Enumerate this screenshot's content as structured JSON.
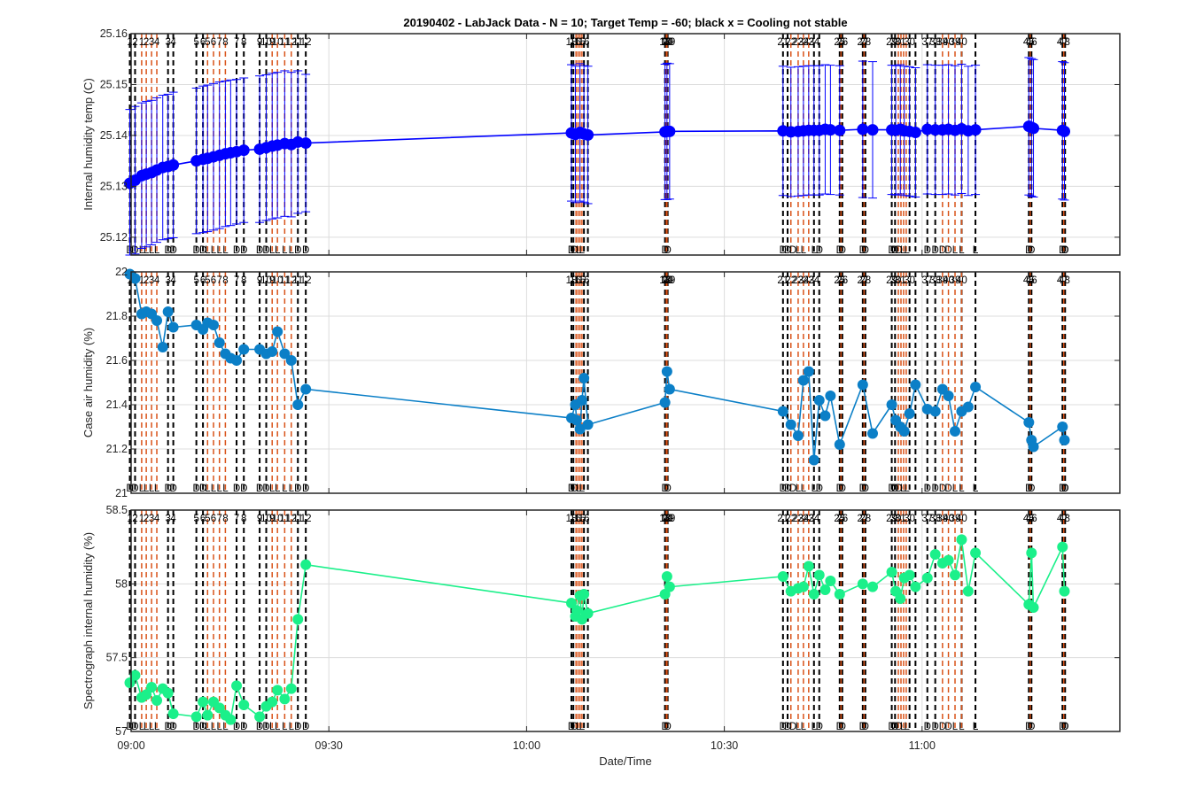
{
  "title": "20190402 - LabJack Data - N = 10; Target Temp = -60; black x = Cooling not stable",
  "xlabel": "Date/Time",
  "colors": {
    "series_top": "#0000ff",
    "series_mid": "#0b7fc7",
    "series_bot": "#1bf08a",
    "vline_black": "#000000",
    "vline_orange": "#d95319",
    "grid": "#dcdcdc",
    "axes": "#262626"
  },
  "chart_data": [
    {
      "type": "line",
      "ylabel": "Internal humidity temp (C)",
      "ylim": [
        25.1165,
        25.16
      ],
      "yticks": [
        "25.12",
        "25.13",
        "25.14",
        "25.15",
        "25.16"
      ],
      "xlim": [
        "09:00",
        "11:30"
      ],
      "xticks": [
        "09:00",
        "09:30",
        "10:00",
        "10:30",
        "11:00"
      ],
      "grid": true,
      "error_bars": true,
      "series": [
        {
          "x": [
            "08:59.8",
            "09:00.6",
            "09:01.6",
            "09:02.3",
            "09:03.1",
            "09:03.9",
            "09:04.8",
            "09:05.6",
            "09:06.4",
            "09:09.9",
            "09:10.9",
            "09:11.6",
            "09:12.5",
            "09:13.4",
            "09:14.3",
            "09:15.1",
            "09:16.0",
            "09:17.1",
            "09:19.5",
            "09:20.5",
            "09:21.4",
            "09:22.2",
            "09:23.3",
            "09:24.3",
            "09:25.3",
            "09:26.5",
            "10:06.8",
            "10:07.4",
            "10:08.1",
            "10:08.7",
            "10:09.3",
            "10:21.0",
            "10:21.3",
            "10:21.7",
            "10:38.9",
            "10:40.1",
            "10:41.2",
            "10:42.0",
            "10:42.8",
            "10:43.6",
            "10:44.4",
            "10:45.3",
            "10:46.1",
            "10:47.5",
            "10:51.0",
            "10:52.5",
            "10:55.4",
            "10:56.0",
            "10:56.7",
            "10:57.3",
            "10:58.1",
            "10:59.0",
            "11:00.8",
            "11:02.0",
            "11:03.1",
            "11:04.0",
            "11:05.0",
            "11:06.0",
            "11:07.0",
            "11:08.1",
            "11:16.2",
            "11:16.6",
            "11:16.9",
            "11:21.3",
            "11:21.6"
          ],
          "y": [
            25.1306,
            25.1312,
            25.1321,
            25.1324,
            25.1327,
            25.1332,
            25.1337,
            25.1339,
            25.1342,
            25.135,
            25.1353,
            25.1355,
            25.1358,
            25.1361,
            25.1364,
            25.1366,
            25.1368,
            25.1371,
            25.1373,
            25.1376,
            25.1379,
            25.1381,
            25.1384,
            25.1382,
            25.1387,
            25.1385,
            25.1405,
            25.1402,
            25.1406,
            25.1403,
            25.1401,
            25.1407,
            25.1408,
            25.1408,
            25.1409,
            25.1407,
            25.1408,
            25.1409,
            25.141,
            25.141,
            25.141,
            25.1412,
            25.1411,
            25.141,
            25.1412,
            25.1411,
            25.1411,
            25.141,
            25.1412,
            25.1409,
            25.1408,
            25.1406,
            25.1412,
            25.1411,
            25.1411,
            25.1412,
            25.141,
            25.1413,
            25.1409,
            25.1411,
            25.1418,
            25.1416,
            25.1414,
            25.141,
            25.1408
          ],
          "err": [
            0.0145,
            0.0145,
            0.0143,
            0.0143,
            0.0142,
            0.0142,
            0.0142,
            0.0142,
            0.0143,
            0.0143,
            0.0144,
            0.0144,
            0.0144,
            0.0144,
            0.0143,
            0.0143,
            0.0142,
            0.0142,
            0.0144,
            0.0143,
            0.0143,
            0.0143,
            0.0143,
            0.0142,
            0.014,
            0.0135,
            0.0134,
            0.0134,
            0.0135,
            0.0134,
            0.0135,
            0.0133,
            0.0134,
            0.0133,
            0.0127,
            0.0127,
            0.0127,
            0.0127,
            0.0127,
            0.0127,
            0.0127,
            0.0127,
            0.0127,
            0.0127,
            0.0134,
            0.0134,
            0.0127,
            0.0127,
            0.0127,
            0.0127,
            0.0127,
            0.0127,
            0.0127,
            0.0127,
            0.0127,
            0.0127,
            0.0127,
            0.0127,
            0.0127,
            0.0127,
            0.0135,
            0.0135,
            0.0135,
            0.0135,
            0.0135
          ]
        }
      ]
    },
    {
      "type": "line",
      "ylabel": "Case air humidity (%)",
      "ylim": [
        21,
        22
      ],
      "yticks": [
        "21",
        "21.2",
        "21.4",
        "21.6",
        "21.8",
        "22"
      ],
      "xlim": [
        "09:00",
        "11:30"
      ],
      "xticks": [
        "09:00",
        "09:30",
        "10:00",
        "10:30",
        "11:00"
      ],
      "grid": true,
      "series": [
        {
          "x": [
            "08:59.8",
            "09:00.6",
            "09:01.6",
            "09:02.3",
            "09:03.1",
            "09:03.9",
            "09:04.8",
            "09:05.6",
            "09:06.4",
            "09:09.9",
            "09:10.9",
            "09:11.6",
            "09:12.5",
            "09:13.4",
            "09:14.3",
            "09:15.1",
            "09:16.0",
            "09:17.1",
            "09:19.5",
            "09:20.5",
            "09:21.4",
            "09:22.2",
            "09:23.3",
            "09:24.3",
            "09:25.3",
            "09:26.5",
            "10:06.8",
            "10:07.4",
            "10:07.6",
            "10:08.1",
            "10:08.4",
            "10:08.7",
            "10:09.3",
            "10:21.0",
            "10:21.3",
            "10:21.7",
            "10:38.9",
            "10:40.1",
            "10:41.2",
            "10:42.0",
            "10:42.8",
            "10:43.6",
            "10:44.4",
            "10:45.3",
            "10:46.1",
            "10:47.5",
            "10:51.0",
            "10:52.5",
            "10:55.4",
            "10:56.0",
            "10:56.7",
            "10:57.3",
            "10:58.1",
            "10:59.0",
            "11:00.8",
            "11:02.0",
            "11:03.1",
            "11:04.0",
            "11:05.0",
            "11:06.0",
            "11:07.0",
            "11:08.1",
            "11:16.2",
            "11:16.6",
            "11:16.9",
            "11:21.3",
            "11:21.6"
          ],
          "y": [
            21.99,
            21.97,
            21.81,
            21.82,
            21.81,
            21.78,
            21.66,
            21.82,
            21.75,
            21.76,
            21.74,
            21.77,
            21.76,
            21.68,
            21.63,
            21.61,
            21.6,
            21.65,
            21.65,
            21.63,
            21.64,
            21.73,
            21.63,
            21.6,
            21.4,
            21.47,
            21.34,
            21.4,
            21.33,
            21.29,
            21.42,
            21.52,
            21.31,
            21.41,
            21.55,
            21.47,
            21.37,
            21.31,
            21.26,
            21.51,
            21.55,
            21.15,
            21.42,
            21.35,
            21.44,
            21.22,
            21.49,
            21.27,
            21.4,
            21.33,
            21.3,
            21.28,
            21.36,
            21.49,
            21.38,
            21.37,
            21.47,
            21.44,
            21.28,
            21.37,
            21.39,
            21.48,
            21.32,
            21.24,
            21.21,
            21.3,
            21.24
          ]
        }
      ]
    },
    {
      "type": "line",
      "ylabel": "Spectrograph internal humidity (%)",
      "ylim": [
        57,
        58.5
      ],
      "yticks": [
        "57",
        "57.5",
        "58",
        "58.5"
      ],
      "xlim": [
        "09:00",
        "11:30"
      ],
      "xticks": [
        "09:00",
        "09:30",
        "10:00",
        "10:30",
        "11:00"
      ],
      "grid": true,
      "series": [
        {
          "x": [
            "08:59.8",
            "09:00.6",
            "09:01.6",
            "09:02.3",
            "09:03.1",
            "09:03.9",
            "09:04.8",
            "09:05.6",
            "09:06.4",
            "09:09.9",
            "09:10.9",
            "09:11.6",
            "09:12.5",
            "09:13.4",
            "09:14.3",
            "09:15.1",
            "09:16.0",
            "09:17.1",
            "09:19.5",
            "09:20.5",
            "09:21.4",
            "09:22.2",
            "09:23.3",
            "09:24.3",
            "09:25.3",
            "09:26.5",
            "10:06.8",
            "10:07.4",
            "10:07.6",
            "10:08.1",
            "10:08.4",
            "10:08.7",
            "10:09.3",
            "10:21.0",
            "10:21.3",
            "10:21.7",
            "10:38.9",
            "10:40.1",
            "10:41.2",
            "10:42.0",
            "10:42.8",
            "10:43.6",
            "10:44.4",
            "10:45.3",
            "10:46.1",
            "10:47.5",
            "10:51.0",
            "10:52.5",
            "10:55.4",
            "10:56.0",
            "10:56.7",
            "10:57.3",
            "10:58.1",
            "10:59.0",
            "11:00.8",
            "11:02.0",
            "11:03.1",
            "11:04.0",
            "11:05.0",
            "11:06.0",
            "11:07.0",
            "11:08.1",
            "11:16.2",
            "11:16.6",
            "11:16.9",
            "11:21.3",
            "11:21.6"
          ],
          "y": [
            57.33,
            57.38,
            57.23,
            57.25,
            57.3,
            57.21,
            57.29,
            57.26,
            57.12,
            57.1,
            57.2,
            57.11,
            57.2,
            57.16,
            57.11,
            57.08,
            57.31,
            57.18,
            57.1,
            57.17,
            57.2,
            57.28,
            57.22,
            57.29,
            57.76,
            58.13,
            57.87,
            57.78,
            57.82,
            57.92,
            57.76,
            57.93,
            57.8,
            57.93,
            58.05,
            57.98,
            58.05,
            57.95,
            57.97,
            57.98,
            58.12,
            57.93,
            58.06,
            57.96,
            58.02,
            57.93,
            58.0,
            57.98,
            58.08,
            57.95,
            57.9,
            58.04,
            58.06,
            57.98,
            58.04,
            58.2,
            58.14,
            58.16,
            58.06,
            58.3,
            57.95,
            58.21,
            57.86,
            58.21,
            57.84,
            58.25,
            57.95
          ]
        }
      ]
    }
  ],
  "vertical_markers": {
    "black_x": [
      "08:59.8",
      "09:00.6",
      "09:05.6",
      "09:06.4",
      "09:09.9",
      "09:10.9",
      "09:16.0",
      "09:17.1",
      "09:19.5",
      "09:20.5",
      "09:25.3",
      "09:26.5",
      "10:06.8",
      "10:07.1",
      "10:08.7",
      "10:09.3",
      "10:21.0",
      "10:21.4",
      "10:38.9",
      "10:39.6",
      "10:43.6",
      "10:44.4",
      "10:47.5",
      "10:47.9",
      "10:51.0",
      "10:51.4",
      "10:55.4",
      "10:55.9",
      "10:58.1",
      "10:59.0",
      "11:00.8",
      "11:02.0",
      "11:06.0",
      "11:08.1",
      "11:16.2",
      "11:16.6",
      "11:21.3",
      "11:21.7"
    ],
    "orange_x": [
      "09:01.6",
      "09:02.3",
      "09:03.1",
      "09:03.9",
      "09:11.6",
      "09:12.5",
      "09:13.4",
      "09:14.3",
      "09:21.4",
      "09:22.2",
      "09:23.3",
      "09:24.3",
      "10:07.5",
      "10:07.8",
      "10:08.1",
      "10:08.4",
      "10:21.2",
      "10:21.3",
      "10:40.1",
      "10:41.2",
      "10:42.0",
      "10:42.8",
      "10:47.7",
      "10:51.2",
      "10:56.4",
      "10:56.8",
      "10:57.2",
      "10:57.6",
      "11:03.1",
      "11:04.0",
      "11:05.0",
      "11:06.0",
      "11:16.4",
      "11:21.5"
    ],
    "top_labels": [
      "1",
      "2",
      "1",
      "2",
      "3",
      "4",
      "3",
      "4",
      "5",
      "6",
      "5",
      "6",
      "7",
      "8",
      "7",
      "8",
      "9",
      "10",
      "9",
      "10",
      "11",
      "12",
      "11",
      "12",
      "18",
      "16",
      "15",
      "16",
      "18",
      "19",
      "20",
      "19",
      "21",
      "22",
      "23",
      "24",
      "23",
      "24",
      "25",
      "26",
      "27",
      "28",
      "29",
      "30",
      "31",
      "30",
      "37",
      "38",
      "39",
      "40",
      "39",
      "40",
      "45",
      "46",
      "47",
      "48"
    ],
    "top_label_x": [
      "08:59.8",
      "09:00.6",
      "09:01.6",
      "09:02.3",
      "09:03.1",
      "09:03.9",
      "09:05.6",
      "09:06.4",
      "09:09.9",
      "09:10.9",
      "09:11.6",
      "09:12.5",
      "09:13.4",
      "09:14.3",
      "09:16.0",
      "09:17.1",
      "09:19.5",
      "09:20.5",
      "09:21.4",
      "09:22.2",
      "09:23.3",
      "09:24.3",
      "09:25.3",
      "09:26.5",
      "10:06.8",
      "10:07.4",
      "10:08.1",
      "10:08.7",
      "10:21.0",
      "10:21.2",
      "10:21.4",
      "10:21.7",
      "10:38.9",
      "10:40.1",
      "10:41.2",
      "10:42.0",
      "10:42.8",
      "10:43.6",
      "10:47.5",
      "10:47.9",
      "10:51.0",
      "10:51.4",
      "10:55.4",
      "10:56.0",
      "10:56.7",
      "10:58.1",
      "11:00.8",
      "11:02.0",
      "11:03.1",
      "11:04.0",
      "11:05.0",
      "11:06.0",
      "11:16.2",
      "11:16.6",
      "11:21.3",
      "11:21.6"
    ],
    "bottom_labels": [
      "D",
      "D",
      "L",
      "L",
      "L",
      "L",
      "D",
      "D",
      "D",
      "D",
      "L",
      "L",
      "L",
      "L",
      "D",
      "D",
      "D",
      "D",
      "L",
      "L",
      "L",
      "L",
      "D",
      "D",
      "D",
      "D",
      "L",
      "L",
      "D",
      "D",
      "D",
      "D",
      "D",
      "L",
      "L",
      "L",
      "D",
      "D",
      "D",
      "D",
      "D",
      "D",
      "D",
      "D",
      "L",
      "L",
      "D",
      "D",
      "D",
      "D",
      "L",
      "L",
      "L",
      "L",
      "D",
      "D",
      "D",
      "D",
      "D",
      "D"
    ],
    "bottom_label_x": [
      "08:59.8",
      "09:00.6",
      "09:01.6",
      "09:02.3",
      "09:03.1",
      "09:03.9",
      "09:05.6",
      "09:06.4",
      "09:09.9",
      "09:10.9",
      "09:11.6",
      "09:12.5",
      "09:13.4",
      "09:14.3",
      "09:16.0",
      "09:17.1",
      "09:19.5",
      "09:20.5",
      "09:21.4",
      "09:22.2",
      "09:23.3",
      "09:24.3",
      "09:25.3",
      "09:26.5",
      "10:06.8",
      "10:07.3",
      "10:07.9",
      "10:08.4",
      "10:21.0",
      "10:21.4",
      "10:38.9",
      "10:39.6",
      "10:40.4",
      "10:41.2",
      "10:42.0",
      "10:43.6",
      "10:44.4",
      "10:47.5",
      "10:47.9",
      "10:51.0",
      "10:51.4",
      "10:55.4",
      "10:55.9",
      "10:56.5",
      "10:57.1",
      "10:57.7",
      "11:00.8",
      "11:02.0",
      "11:03.1",
      "11:04.0",
      "11:05.0",
      "11:06.0",
      "11:08.1",
      "11:08.1",
      "11:16.2",
      "11:16.6",
      "11:21.3",
      "11:21.7",
      "11:21.7",
      "11:21.7"
    ]
  }
}
